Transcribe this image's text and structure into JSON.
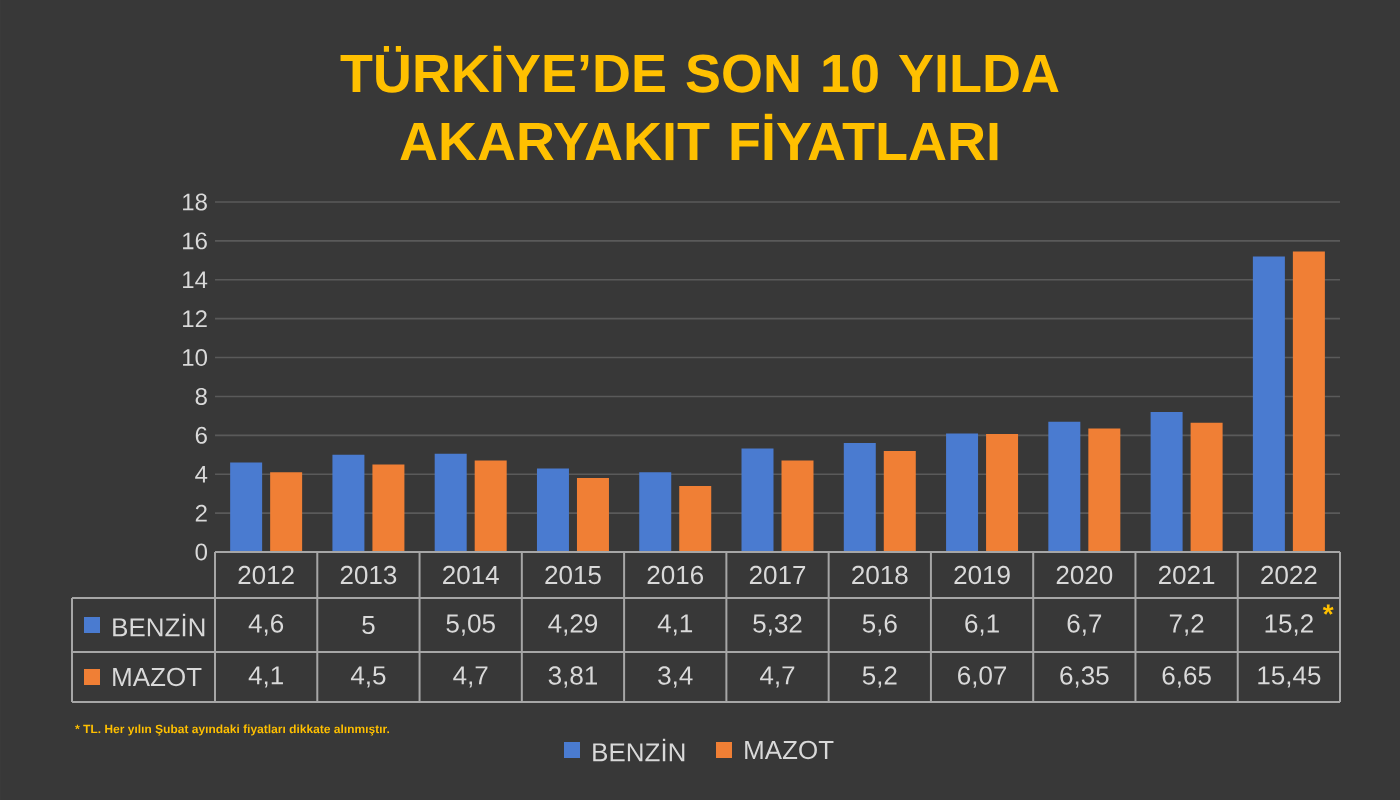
{
  "chart_data": {
    "type": "bar",
    "title": "TÜRKİYE’DE SON 10 YILDA AKARYAKIT FİYATLARI",
    "categories": [
      "2012",
      "2013",
      "2014",
      "2015",
      "2016",
      "2017",
      "2018",
      "2019",
      "2020",
      "2021",
      "2022"
    ],
    "series": [
      {
        "name": "BENZİN",
        "color": "#4a7bd0",
        "values": [
          4.6,
          5,
          5.05,
          4.29,
          4.1,
          5.32,
          5.6,
          6.1,
          6.7,
          7.2,
          15.2
        ],
        "value_labels": [
          "4,6",
          "5",
          "5,05",
          "4,29",
          "4,1",
          "5,32",
          "5,6",
          "6,1",
          "6,7",
          "7,2",
          "15,2"
        ]
      },
      {
        "name": "MAZOT",
        "color": "#f07f35",
        "values": [
          4.1,
          4.5,
          4.7,
          3.81,
          3.4,
          4.7,
          5.2,
          6.07,
          6.35,
          6.65,
          15.45
        ],
        "value_labels": [
          "4,1",
          "4,5",
          "4,7",
          "3,81",
          "3,4",
          "4,7",
          "5,2",
          "6,07",
          "6,35",
          "6,65",
          "15,45"
        ]
      }
    ],
    "ylim": [
      0,
      18
    ],
    "yticks": [
      0,
      2,
      4,
      6,
      8,
      10,
      12,
      14,
      16,
      18
    ],
    "grid": "y",
    "legend": "bottom",
    "annotations": [
      "*",
      "* TL. Her yılın Şubat ayındaki fiyatları dikkate alınmıştır."
    ]
  }
}
